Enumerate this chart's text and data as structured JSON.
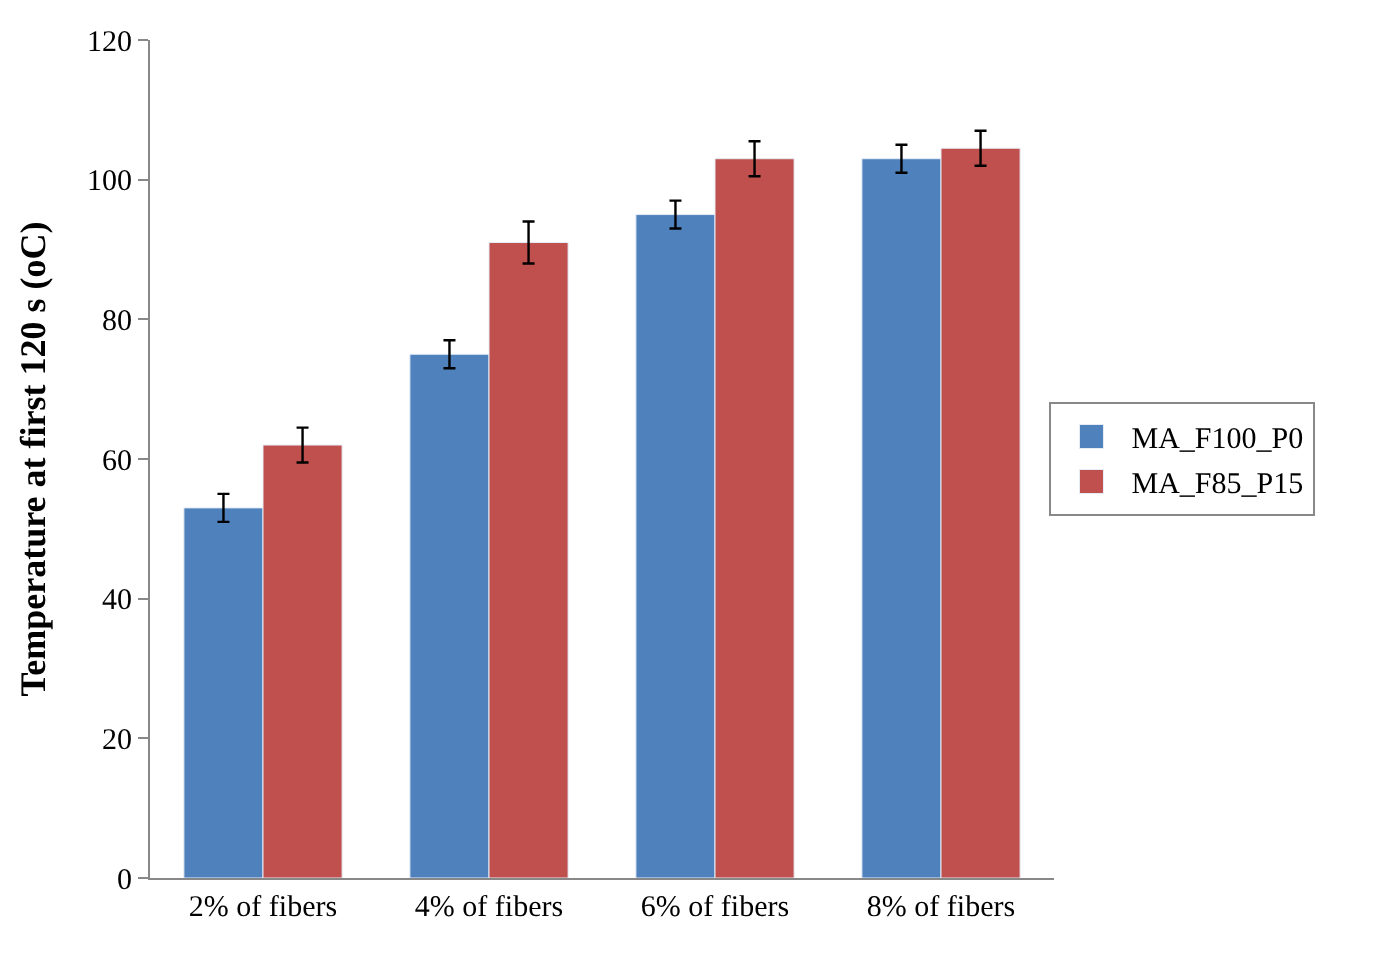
{
  "chart_data": {
    "type": "bar",
    "ylabel": "Temperature at first 120 s (oC)",
    "categories": [
      "2% of fibers",
      "4% of fibers",
      "6% of fibers",
      "8% of fibers"
    ],
    "series": [
      {
        "name": "MA_F100_P0",
        "color": "#4f81bd",
        "values": [
          53,
          75,
          95,
          103
        ],
        "errors": [
          2,
          2,
          2,
          2
        ]
      },
      {
        "name": "MA_F85_P15",
        "color": "#c0504d",
        "values": [
          62,
          91,
          103,
          104.5
        ],
        "errors": [
          2.5,
          3,
          2.5,
          2.5
        ]
      }
    ],
    "ylim": [
      0,
      120
    ],
    "yticks": [
      0,
      20,
      40,
      60,
      80,
      100,
      120
    ],
    "legend": "right"
  }
}
